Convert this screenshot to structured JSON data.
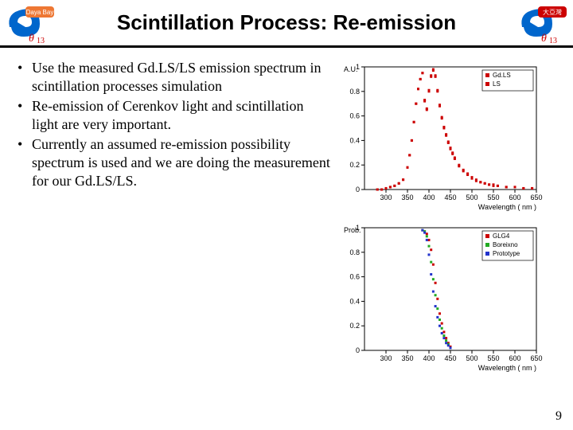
{
  "header": {
    "title": "Scintillation Process: Re-emission",
    "title_fontsize": 26,
    "title_color": "#000000",
    "logo_left": {
      "swirl_color": "#0066cc",
      "plate_color": "#ee7733",
      "plate_text": "Daya Bay",
      "theta_text": "13",
      "accent_color": "#cc0000"
    },
    "logo_right": {
      "swirl_color": "#0066cc",
      "plate_color": "#cc0000",
      "plate_text": "大亞灣",
      "theta_text": "13",
      "accent_color": "#cc0000"
    }
  },
  "bullets": {
    "fontsize": 18,
    "color": "#000000",
    "items": [
      "Use the measured Gd.LS/LS emission spectrum in scintillation processes simulation",
      "Re-emission of Cerenkov light and scintillation light are very important.",
      "Currently an assumed re-emission possibility spectrum is used and we are doing the measurement for our Gd.LS/LS."
    ]
  },
  "chart_top": {
    "type": "scatter",
    "xlabel": "Wavelength ( nm )",
    "ylabel": "A.U.",
    "label_fontsize": 9,
    "xlim": [
      250,
      650
    ],
    "ylim": [
      0,
      1.0
    ],
    "xticks": [
      300,
      350,
      400,
      450,
      500,
      550,
      600,
      650
    ],
    "yticks": [
      0,
      0.2,
      0.4,
      0.6,
      0.8,
      1.0
    ],
    "background_color": "#ffffff",
    "axis_color": "#000000",
    "tick_fontsize": 9,
    "legend": {
      "items": [
        {
          "label": "Gd.LS",
          "color": "#cc0000",
          "marker": "square"
        },
        {
          "label": "LS",
          "color": "#cc0000",
          "marker": "square"
        }
      ],
      "border_color": "#000000",
      "position": "top-right"
    },
    "series": [
      {
        "name": "Gd.LS",
        "color": "#cc0000",
        "marker": "square",
        "marker_size": 3,
        "points_x": [
          280,
          290,
          300,
          310,
          320,
          330,
          340,
          350,
          355,
          360,
          365,
          370,
          375,
          380,
          385,
          390,
          395,
          400,
          405,
          410,
          415,
          420,
          425,
          430,
          435,
          440,
          445,
          450,
          455,
          460,
          470,
          480,
          490,
          500,
          510,
          520,
          530,
          540,
          550,
          560,
          580,
          600,
          620,
          640
        ],
        "points_y": [
          0.0,
          0.0,
          0.01,
          0.02,
          0.03,
          0.05,
          0.08,
          0.18,
          0.28,
          0.4,
          0.55,
          0.7,
          0.82,
          0.9,
          0.95,
          0.72,
          0.65,
          0.8,
          0.92,
          0.97,
          0.92,
          0.8,
          0.68,
          0.58,
          0.5,
          0.44,
          0.38,
          0.33,
          0.29,
          0.25,
          0.19,
          0.15,
          0.12,
          0.09,
          0.07,
          0.06,
          0.05,
          0.04,
          0.03,
          0.03,
          0.02,
          0.02,
          0.01,
          0.01
        ]
      },
      {
        "name": "LS",
        "color": "#cc0000",
        "marker": "square",
        "marker_size": 3,
        "points_x": [
          280,
          290,
          300,
          310,
          320,
          330,
          340,
          350,
          355,
          360,
          365,
          370,
          375,
          380,
          385,
          390,
          395,
          400,
          405,
          410,
          415,
          420,
          425,
          430,
          435,
          440,
          445,
          450,
          455,
          460,
          470,
          480,
          490,
          500,
          510,
          520,
          530,
          540,
          550,
          560,
          580,
          600,
          620,
          640
        ],
        "points_y": [
          0.0,
          0.0,
          0.01,
          0.02,
          0.03,
          0.05,
          0.08,
          0.18,
          0.28,
          0.4,
          0.55,
          0.7,
          0.82,
          0.9,
          0.95,
          0.73,
          0.66,
          0.81,
          0.93,
          0.98,
          0.93,
          0.81,
          0.69,
          0.59,
          0.51,
          0.45,
          0.39,
          0.34,
          0.3,
          0.26,
          0.2,
          0.16,
          0.13,
          0.1,
          0.08,
          0.06,
          0.05,
          0.04,
          0.04,
          0.03,
          0.02,
          0.02,
          0.01,
          0.01
        ]
      }
    ]
  },
  "chart_bottom": {
    "type": "scatter",
    "xlabel": "Wavelength ( nm )",
    "ylabel": "Prob.",
    "label_fontsize": 9,
    "xlim": [
      250,
      650
    ],
    "ylim": [
      0,
      1.0
    ],
    "xticks": [
      300,
      350,
      400,
      450,
      500,
      550,
      600,
      650
    ],
    "yticks": [
      0,
      0.2,
      0.4,
      0.6,
      0.8,
      1.0
    ],
    "background_color": "#ffffff",
    "axis_color": "#000000",
    "tick_fontsize": 9,
    "legend": {
      "items": [
        {
          "label": "GLG4",
          "color": "#cc0000",
          "marker": "square"
        },
        {
          "label": "Boreixno",
          "color": "#22aa22",
          "marker": "square"
        },
        {
          "label": "Prototype",
          "color": "#2233cc",
          "marker": "square"
        }
      ],
      "border_color": "#000000",
      "position": "top-right"
    },
    "series": [
      {
        "name": "GLG4",
        "color": "#cc0000",
        "marker": "square",
        "marker_size": 3,
        "points_x": [
          385,
          390,
          395,
          400,
          405,
          410,
          415,
          420,
          425,
          430,
          435,
          440,
          445,
          450
        ],
        "points_y": [
          0.98,
          0.97,
          0.95,
          0.9,
          0.82,
          0.7,
          0.55,
          0.42,
          0.3,
          0.22,
          0.15,
          0.1,
          0.06,
          0.03
        ]
      },
      {
        "name": "Boreixno",
        "color": "#22aa22",
        "marker": "square",
        "marker_size": 3,
        "points_x": [
          385,
          390,
          395,
          400,
          405,
          410,
          415,
          420,
          425,
          430,
          435,
          440,
          445,
          450
        ],
        "points_y": [
          0.98,
          0.97,
          0.93,
          0.85,
          0.72,
          0.58,
          0.45,
          0.34,
          0.25,
          0.18,
          0.12,
          0.08,
          0.05,
          0.02
        ]
      },
      {
        "name": "Prototype",
        "color": "#2233cc",
        "marker": "square",
        "marker_size": 3,
        "points_x": [
          385,
          390,
          395,
          400,
          405,
          410,
          415,
          420,
          425,
          430,
          435,
          440,
          445,
          450
        ],
        "points_y": [
          0.98,
          0.96,
          0.9,
          0.78,
          0.62,
          0.48,
          0.36,
          0.27,
          0.2,
          0.14,
          0.1,
          0.06,
          0.04,
          0.02
        ]
      }
    ]
  },
  "page_number": "9",
  "page_number_fontsize": 16
}
